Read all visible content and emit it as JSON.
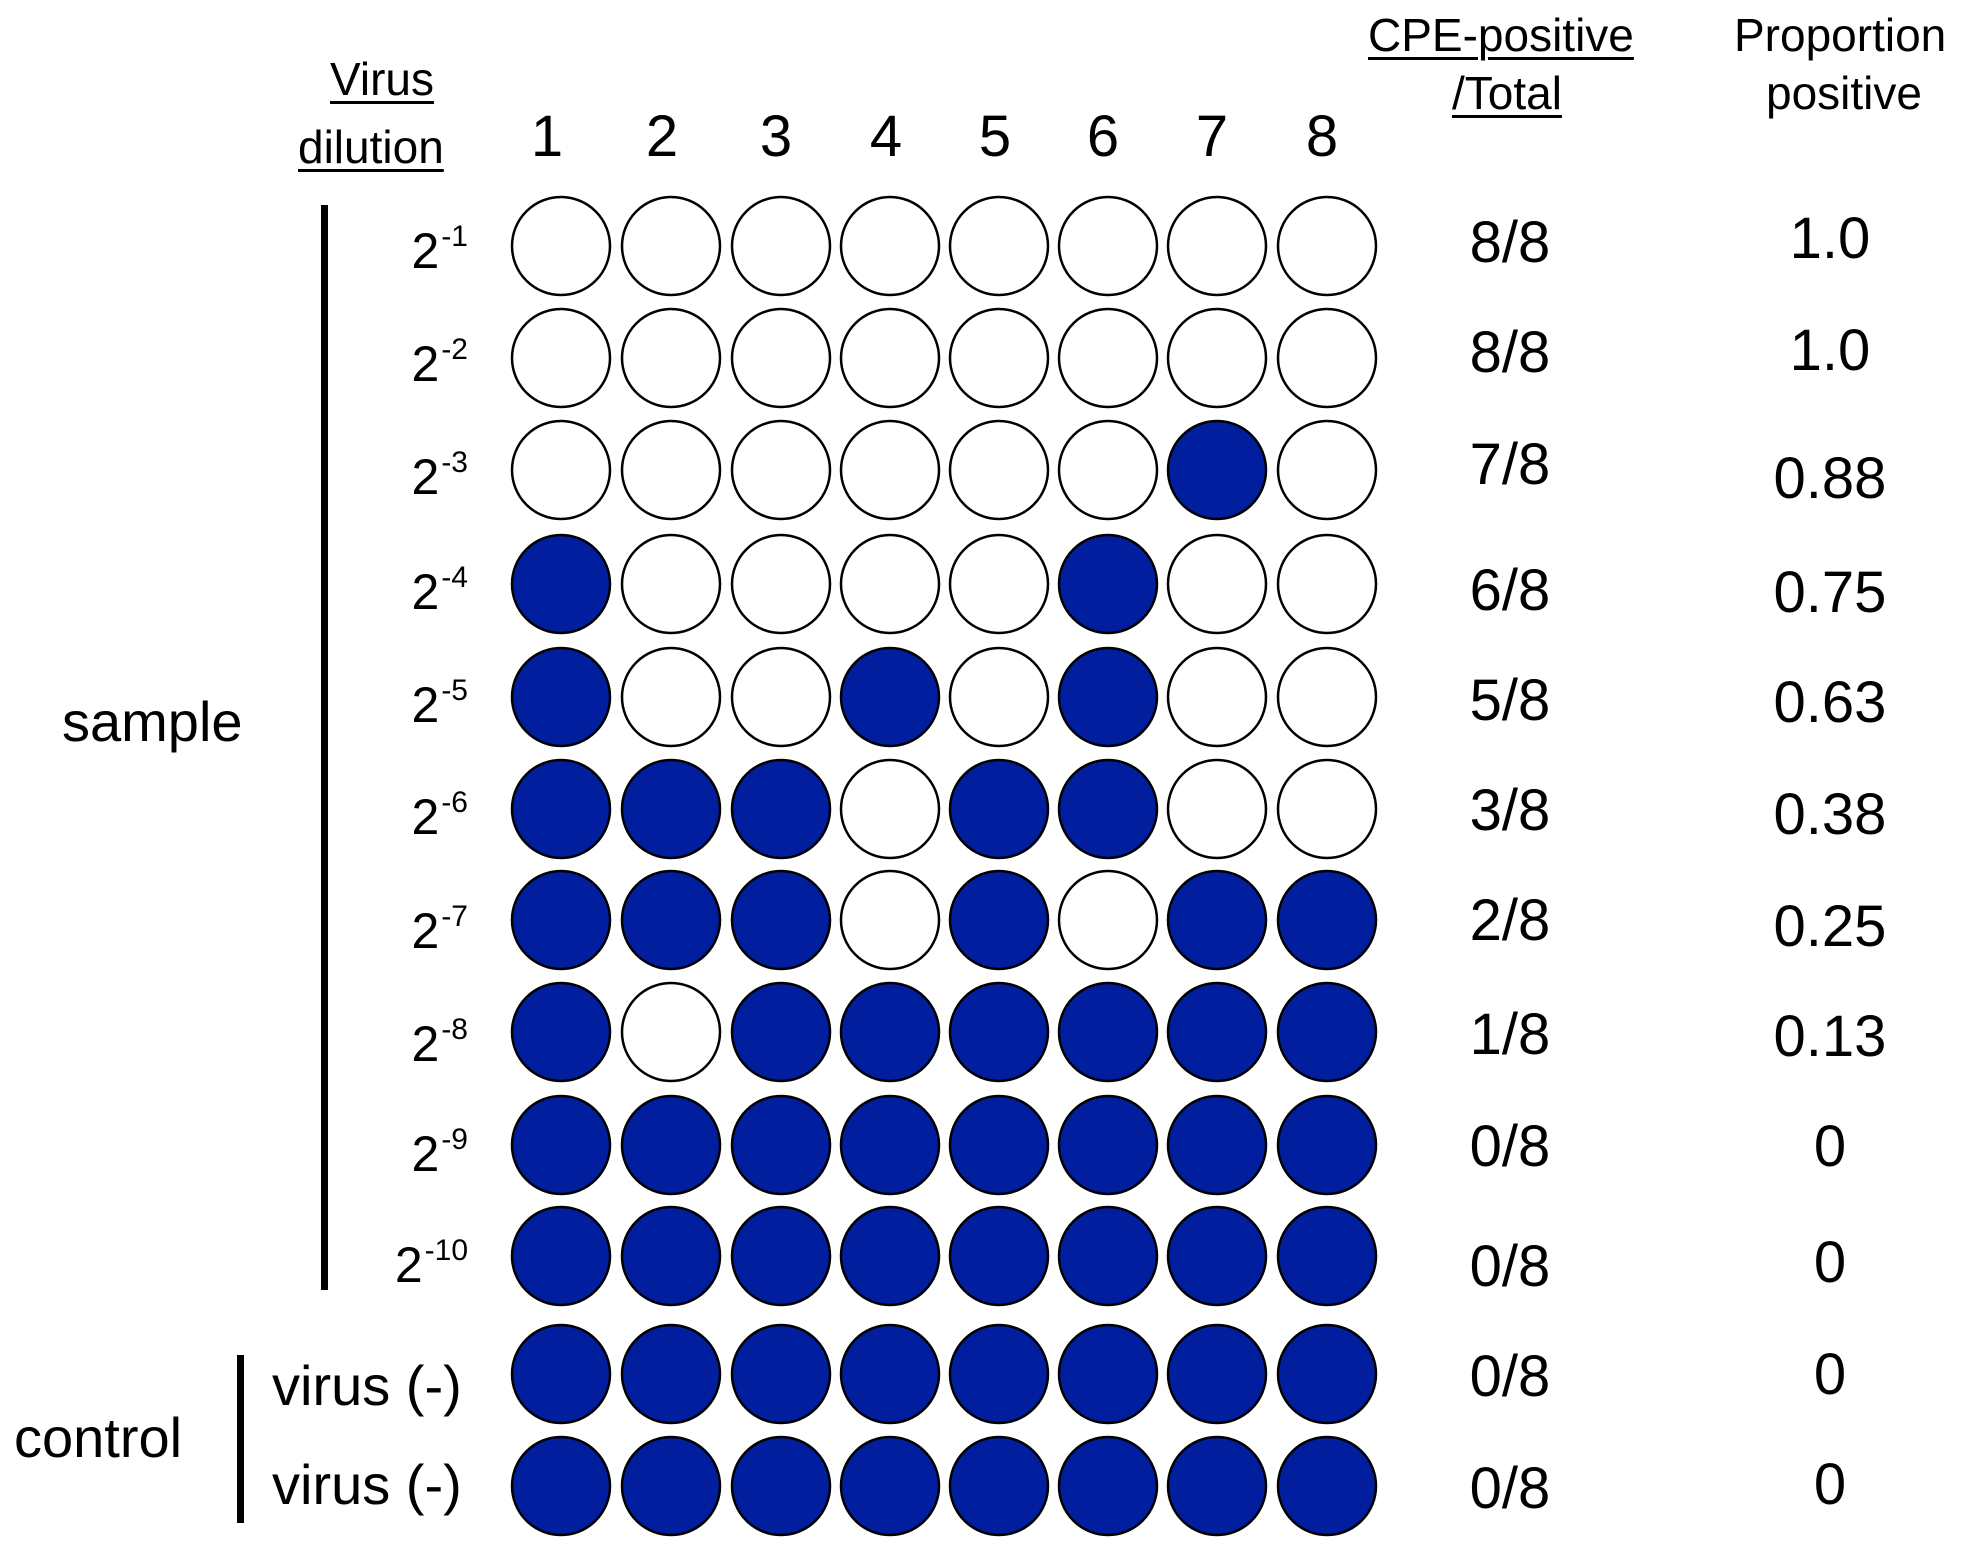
{
  "colors": {
    "cpe_negative_fill": "#001E9E",
    "cpe_positive_fill": "#FFFFFF",
    "outline": "#000000"
  },
  "headers": {
    "virus_dilution_line1": "Virus",
    "virus_dilution_line2": "dilution",
    "cpe_line1": "CPE-positive",
    "cpe_line2": "/Total",
    "proportion_line1": "Proportion",
    "proportion_line2": "positive"
  },
  "columns": [
    "1",
    "2",
    "3",
    "4",
    "5",
    "6",
    "7",
    "8"
  ],
  "groups": {
    "sample": "sample",
    "control": "control"
  },
  "legend_note": "filled = 1 (blue), open = 0 (white)",
  "rows": [
    {
      "base": "2",
      "exp": "-1",
      "label": "",
      "wells": [
        0,
        0,
        0,
        0,
        0,
        0,
        0,
        0
      ],
      "cpe": "8/8",
      "proportion": "1.0"
    },
    {
      "base": "2",
      "exp": "-2",
      "label": "",
      "wells": [
        0,
        0,
        0,
        0,
        0,
        0,
        0,
        0
      ],
      "cpe": "8/8",
      "proportion": "1.0"
    },
    {
      "base": "2",
      "exp": "-3",
      "label": "",
      "wells": [
        0,
        0,
        0,
        0,
        0,
        0,
        1,
        0
      ],
      "cpe": "7/8",
      "proportion": "0.88"
    },
    {
      "base": "2",
      "exp": "-4",
      "label": "",
      "wells": [
        1,
        0,
        0,
        0,
        0,
        1,
        0,
        0
      ],
      "cpe": "6/8",
      "proportion": "0.75"
    },
    {
      "base": "2",
      "exp": "-5",
      "label": "",
      "wells": [
        1,
        0,
        0,
        1,
        0,
        1,
        0,
        0
      ],
      "cpe": "5/8",
      "proportion": "0.63"
    },
    {
      "base": "2",
      "exp": "-6",
      "label": "",
      "wells": [
        1,
        1,
        1,
        0,
        1,
        1,
        0,
        0
      ],
      "cpe": "3/8",
      "proportion": "0.38"
    },
    {
      "base": "2",
      "exp": "-7",
      "label": "",
      "wells": [
        1,
        1,
        1,
        0,
        1,
        0,
        1,
        1
      ],
      "cpe": "2/8",
      "proportion": "0.25"
    },
    {
      "base": "2",
      "exp": "-8",
      "label": "",
      "wells": [
        1,
        0,
        1,
        1,
        1,
        1,
        1,
        1
      ],
      "cpe": "1/8",
      "proportion": "0.13"
    },
    {
      "base": "2",
      "exp": "-9",
      "label": "",
      "wells": [
        1,
        1,
        1,
        1,
        1,
        1,
        1,
        1
      ],
      "cpe": "0/8",
      "proportion": "0"
    },
    {
      "base": "2",
      "exp": "-10",
      "label": "",
      "wells": [
        1,
        1,
        1,
        1,
        1,
        1,
        1,
        1
      ],
      "cpe": "0/8",
      "proportion": "0"
    },
    {
      "base": "",
      "exp": "",
      "label": "virus (-)",
      "wells": [
        1,
        1,
        1,
        1,
        1,
        1,
        1,
        1
      ],
      "cpe": "0/8",
      "proportion": "0"
    },
    {
      "base": "",
      "exp": "",
      "label": "virus (-)",
      "wells": [
        1,
        1,
        1,
        1,
        1,
        1,
        1,
        1
      ],
      "cpe": "0/8",
      "proportion": "0"
    }
  ]
}
